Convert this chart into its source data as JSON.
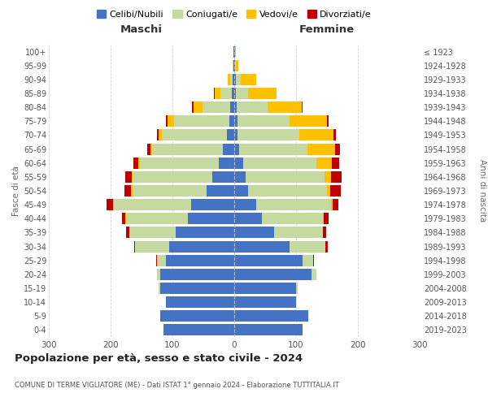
{
  "age_groups": [
    "0-4",
    "5-9",
    "10-14",
    "15-19",
    "20-24",
    "25-29",
    "30-34",
    "35-39",
    "40-44",
    "45-49",
    "50-54",
    "55-59",
    "60-64",
    "65-69",
    "70-74",
    "75-79",
    "80-84",
    "85-89",
    "90-94",
    "95-99",
    "100+"
  ],
  "birth_years": [
    "2019-2023",
    "2014-2018",
    "2009-2013",
    "2004-2008",
    "1999-2003",
    "1994-1998",
    "1989-1993",
    "1984-1988",
    "1979-1983",
    "1974-1978",
    "1969-1973",
    "1964-1968",
    "1959-1963",
    "1954-1958",
    "1949-1953",
    "1944-1948",
    "1939-1943",
    "1934-1938",
    "1929-1933",
    "1924-1928",
    "≤ 1923"
  ],
  "colors": {
    "celibi": "#4472c4",
    "coniugati": "#c5d9a0",
    "vedovi": "#ffc000",
    "divorziati": "#c00000"
  },
  "maschi": {
    "celibi": [
      115,
      120,
      110,
      120,
      120,
      110,
      105,
      95,
      75,
      70,
      45,
      35,
      25,
      18,
      12,
      8,
      6,
      4,
      2,
      1,
      1
    ],
    "coniugati": [
      0,
      0,
      0,
      2,
      5,
      15,
      55,
      75,
      100,
      125,
      120,
      130,
      128,
      115,
      105,
      90,
      45,
      18,
      4,
      1,
      0
    ],
    "vedovi": [
      0,
      0,
      0,
      0,
      0,
      0,
      0,
      0,
      1,
      1,
      2,
      1,
      2,
      3,
      5,
      10,
      15,
      10,
      5,
      1,
      0
    ],
    "divorziati": [
      0,
      0,
      0,
      0,
      0,
      1,
      2,
      5,
      5,
      10,
      10,
      10,
      8,
      5,
      3,
      3,
      3,
      1,
      0,
      0,
      0
    ]
  },
  "femmine": {
    "celibi": [
      110,
      120,
      100,
      100,
      125,
      110,
      90,
      65,
      45,
      35,
      22,
      18,
      15,
      8,
      5,
      5,
      4,
      3,
      2,
      1,
      1
    ],
    "coniugati": [
      0,
      0,
      0,
      2,
      8,
      18,
      58,
      78,
      98,
      122,
      128,
      128,
      118,
      110,
      100,
      85,
      50,
      20,
      8,
      1,
      0
    ],
    "vedovi": [
      0,
      0,
      0,
      0,
      0,
      0,
      0,
      1,
      2,
      2,
      5,
      10,
      25,
      45,
      55,
      60,
      55,
      45,
      25,
      5,
      1
    ],
    "divorziati": [
      0,
      0,
      0,
      0,
      0,
      1,
      3,
      5,
      8,
      10,
      18,
      18,
      12,
      8,
      5,
      2,
      2,
      1,
      1,
      0,
      0
    ]
  },
  "title": "Popolazione per età, sesso e stato civile - 2024",
  "subtitle": "COMUNE DI TERME VIGLIATORE (ME) - Dati ISTAT 1° gennaio 2024 - Elaborazione TUTTITALIA.IT",
  "xlabel_left": "Maschi",
  "xlabel_right": "Femmine",
  "ylabel_left": "Fasce di età",
  "ylabel_right": "Anni di nascita",
  "xlim": 300,
  "legend_labels": [
    "Celibi/Nubili",
    "Coniugati/e",
    "Vedovi/e",
    "Divorziati/e"
  ],
  "background_color": "#ffffff",
  "grid_color": "#cccccc"
}
